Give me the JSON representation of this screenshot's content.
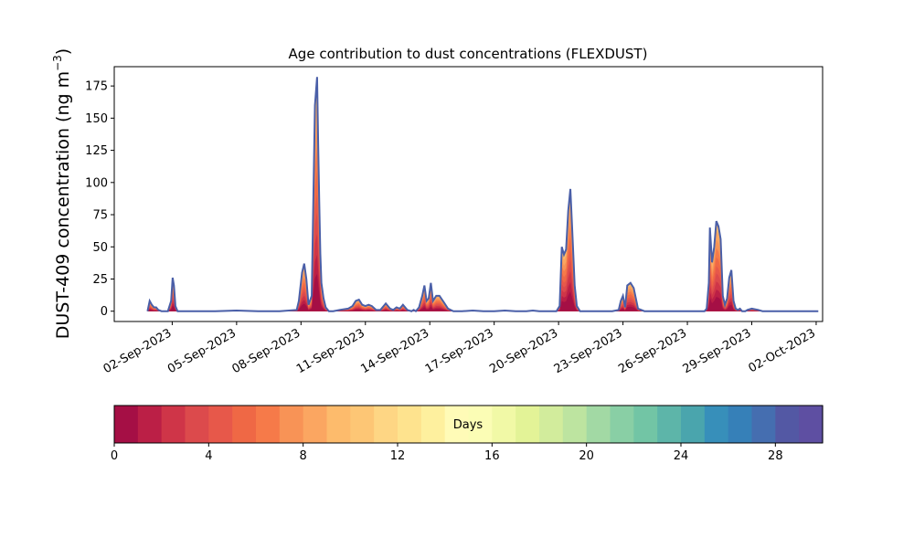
{
  "chart_data": {
    "type": "area",
    "title": "Age contribution to dust concentrations (FLEXDUST)",
    "ylabel_main": "DUST-409 concentration (ng m",
    "ylabel_unit_exp": "−3",
    "ylabel_close": ")",
    "xlabel": "",
    "ylim": [
      -8,
      190
    ],
    "y_ticks": [
      0,
      25,
      50,
      75,
      100,
      125,
      150,
      175
    ],
    "x_range_days": [
      -1.7,
      31.3
    ],
    "x_ticks": [
      {
        "day": 1,
        "label": "02-Sep-2023"
      },
      {
        "day": 4,
        "label": "05-Sep-2023"
      },
      {
        "day": 7,
        "label": "08-Sep-2023"
      },
      {
        "day": 10,
        "label": "11-Sep-2023"
      },
      {
        "day": 13,
        "label": "14-Sep-2023"
      },
      {
        "day": 16,
        "label": "17-Sep-2023"
      },
      {
        "day": 19,
        "label": "20-Sep-2023"
      },
      {
        "day": 22,
        "label": "23-Sep-2023"
      },
      {
        "day": 25,
        "label": "26-Sep-2023"
      },
      {
        "day": 28,
        "label": "29-Sep-2023"
      },
      {
        "day": 31,
        "label": "02-Oct-2023"
      }
    ],
    "series_note": "x = days since 01-Sep-2023; total = stacked total concentration (ng m-3)",
    "total_series": {
      "x": [
        -0.15,
        -0.05,
        0.05,
        0.15,
        0.25,
        0.35,
        0.5,
        0.8,
        0.95,
        1.02,
        1.08,
        1.15,
        1.25,
        1.5,
        2.0,
        3.0,
        4.0,
        5.0,
        6.0,
        6.8,
        6.9,
        7.05,
        7.15,
        7.25,
        7.35,
        7.5,
        7.65,
        7.75,
        7.8,
        7.85,
        7.9,
        7.95,
        8.05,
        8.15,
        8.3,
        8.5,
        8.8,
        9.2,
        9.4,
        9.55,
        9.7,
        9.85,
        10.0,
        10.15,
        10.3,
        10.5,
        10.7,
        10.95,
        11.15,
        11.3,
        11.45,
        11.6,
        11.75,
        11.95,
        12.15,
        12.25,
        12.35,
        12.5,
        12.65,
        12.75,
        12.85,
        12.95,
        13.05,
        13.15,
        13.3,
        13.45,
        13.65,
        13.85,
        14.1,
        14.5,
        15.0,
        15.5,
        16.0,
        16.5,
        17.0,
        17.5,
        17.8,
        18.1,
        18.4,
        18.9,
        19.05,
        19.15,
        19.25,
        19.35,
        19.45,
        19.55,
        19.65,
        19.75,
        19.85,
        20.0,
        20.2,
        20.5,
        21.0,
        21.5,
        21.8,
        21.9,
        22.0,
        22.1,
        22.2,
        22.35,
        22.5,
        22.7,
        23.0,
        24.0,
        25.0,
        25.5,
        25.7,
        25.8,
        25.9,
        26.0,
        26.05,
        26.15,
        26.25,
        26.35,
        26.45,
        26.55,
        26.65,
        26.75,
        26.85,
        26.95,
        27.05,
        27.15,
        27.25,
        27.35,
        27.45,
        27.55,
        27.7,
        27.8,
        28.0,
        28.3,
        28.5,
        29.0,
        30.0,
        31.0,
        31.1
      ],
      "y": [
        0,
        8,
        5,
        3,
        3,
        1,
        0,
        0,
        8,
        26,
        20,
        4,
        0,
        0,
        0,
        0,
        0.5,
        0,
        0,
        1,
        8,
        30,
        37,
        25,
        5,
        12,
        160,
        182,
        130,
        85,
        45,
        22,
        10,
        3,
        0,
        0,
        1,
        2,
        4,
        8,
        9,
        5,
        4,
        5,
        4,
        1,
        1,
        6,
        2,
        1,
        3,
        2,
        5,
        1,
        0,
        1,
        0,
        3,
        12,
        20,
        8,
        10,
        22,
        8,
        12,
        12,
        7,
        2,
        0,
        0,
        0.5,
        0,
        0,
        0.5,
        0,
        0,
        0.5,
        0,
        0,
        0,
        4,
        50,
        44,
        48,
        78,
        95,
        58,
        20,
        4,
        0,
        0,
        0,
        0,
        0,
        1,
        8,
        12,
        3,
        20,
        22,
        18,
        2,
        0,
        0,
        0,
        0,
        0,
        0,
        2,
        22,
        65,
        38,
        50,
        70,
        66,
        56,
        12,
        5,
        10,
        26,
        32,
        8,
        2,
        1,
        2,
        0,
        0,
        1,
        2,
        1,
        0,
        0,
        0,
        0,
        0
      ]
    },
    "colorbar": {
      "label": "Days",
      "ticks": [
        0,
        4,
        8,
        12,
        16,
        20,
        24,
        28
      ],
      "range": [
        0,
        30
      ],
      "colors": [
        "#a50f45",
        "#bb1f46",
        "#cf3548",
        "#dc4a4c",
        "#e7584a",
        "#ef6845",
        "#f67a49",
        "#f89356",
        "#fba661",
        "#fdbb6c",
        "#fdc675",
        "#fed684",
        "#fee38e",
        "#fef09e",
        "#fffbb7",
        "#fbfdb5",
        "#f1f9a6",
        "#e3f397",
        "#d2ec9c",
        "#bde4a0",
        "#a2d9a4",
        "#89cfa5",
        "#72c5a5",
        "#5db5a9",
        "#4aa5ad",
        "#378fba",
        "#3680b8",
        "#456eb0",
        "#5358a4",
        "#5e4fa2"
      ]
    }
  }
}
